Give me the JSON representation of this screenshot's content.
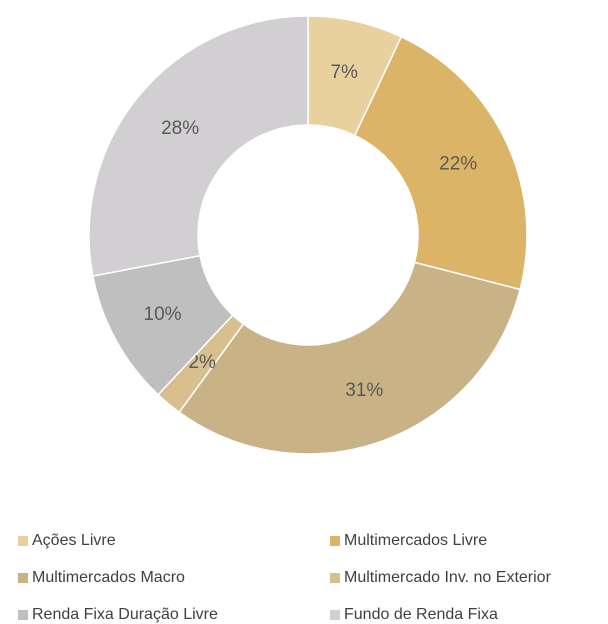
{
  "chart_data": {
    "type": "donut",
    "categories": [
      "Ações Livre",
      "Multimercados Livre",
      "Multimercados Macro",
      "Multimercado Inv. no Exterior",
      "Renda Fixa Duração Livre",
      "Fundo de Renda Fixa"
    ],
    "values": [
      7,
      22,
      31,
      2,
      10,
      28
    ],
    "value_labels": [
      "7%",
      "22%",
      "31%",
      "2%",
      "10%",
      "28%"
    ],
    "colors": [
      "#e9d09f",
      "#dcb467",
      "#c9b386",
      "#d8c08e",
      "#bfbfbf",
      "#d1cfd1"
    ],
    "legend": "bottom"
  }
}
